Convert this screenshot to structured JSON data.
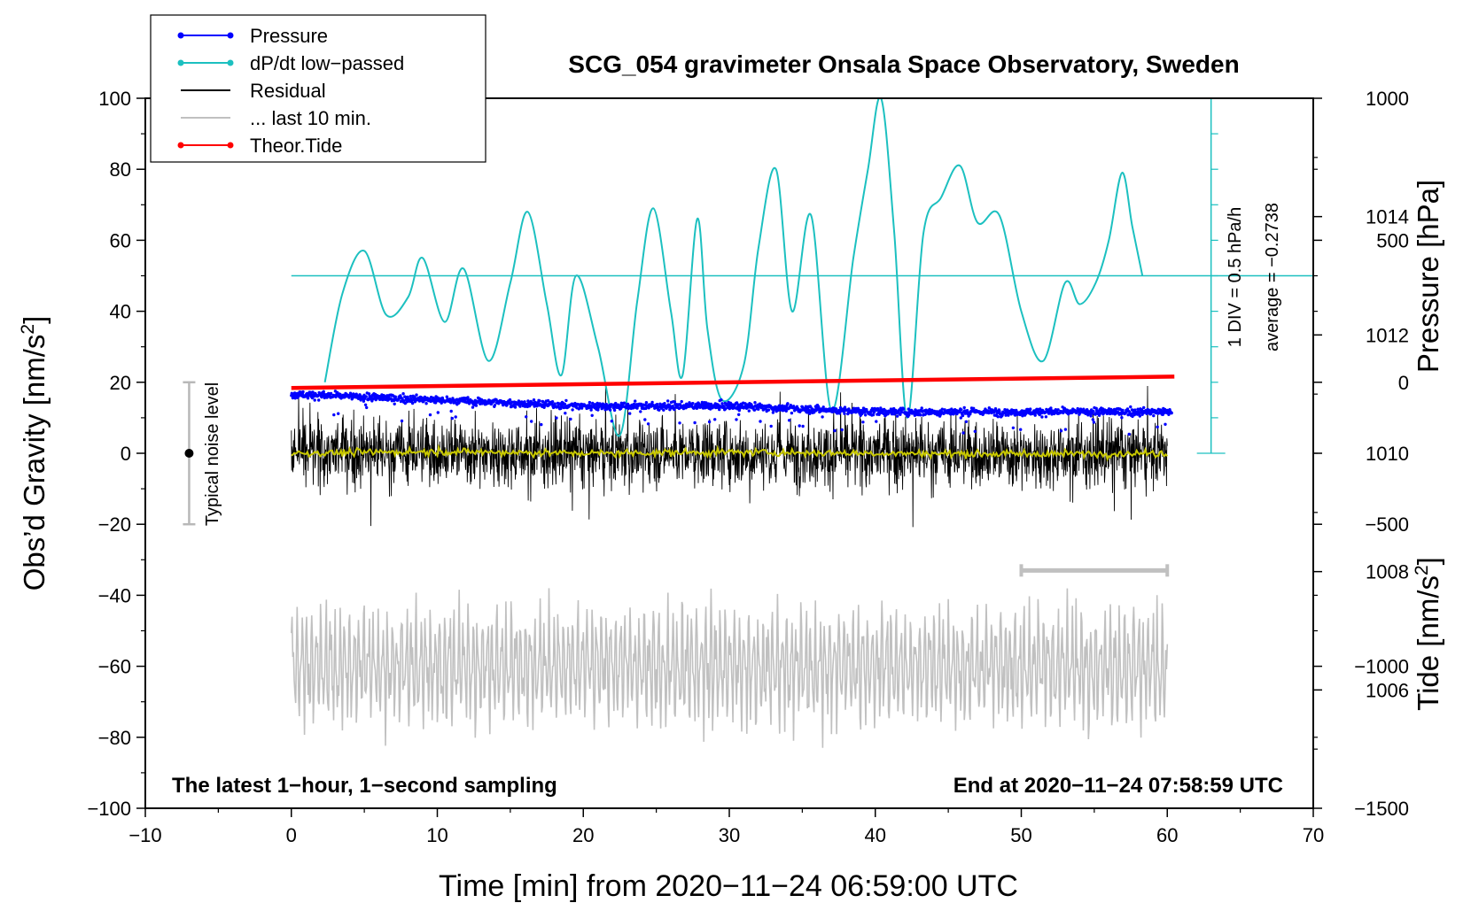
{
  "chart_data": {
    "type": "line",
    "title": "SCG_054 gravimeter Onsala Space Observatory, Sweden",
    "xlabel": "Time [min] from 2020−11−24 06:59:00 UTC",
    "ylabel_left": "Obs’d Gravity [nm/s",
    "ylabel_left_sup": "2",
    "ylabel_left_close": "]",
    "ylabel_right_pressure": "Pressure [hPa]",
    "ylabel_right_tide": "Tide [nm/s",
    "ylabel_right_tide_sup": "2",
    "ylabel_right_tide_close": "]",
    "xlim": [
      -10,
      70
    ],
    "ylim": [
      -100,
      100
    ],
    "pressure_lim": [
      1004,
      1016
    ],
    "tide_lim": [
      -1500,
      1000
    ],
    "x_ticks": [
      "−10",
      "0",
      "10",
      "20",
      "30",
      "40",
      "50",
      "60",
      "70"
    ],
    "y_ticks": [
      "−100",
      "−80",
      "−60",
      "−40",
      "−20",
      "0",
      "20",
      "40",
      "60",
      "80",
      "100"
    ],
    "pressure_ticks": [
      "1006",
      "1008",
      "1010",
      "1012",
      "1014"
    ],
    "tide_ticks": [
      "−1500",
      "−1000",
      "−500",
      "0",
      "500",
      "1000"
    ],
    "legend": [
      {
        "label": "Pressure",
        "color": "#0000ff",
        "marker": true
      },
      {
        "label": "dP/dt low−passed",
        "color": "#1cc0c0",
        "marker": true
      },
      {
        "label": "Residual",
        "color": "#000000",
        "marker": false
      },
      {
        "label": "... last 10 min.",
        "color": "#c0c0c0",
        "marker": false
      },
      {
        "label": "Theor.Tide",
        "color": "#ff0000",
        "marker": true
      }
    ],
    "annotations": {
      "bottom_left": "The latest 1−hour, 1−second sampling",
      "bottom_right": "End at 2020−11−24 07:58:59 UTC",
      "noise_label": "Typical noise level",
      "scale_label": "1 DIV = 0.5 hPa/h",
      "average_label": "average = −0.2738"
    },
    "noise_bar": {
      "x": -7,
      "y_low": -20,
      "y_high": 20
    },
    "last_10_min_bar": {
      "x_start": 50,
      "x_end": 60,
      "y": -33
    },
    "dpdt_scale": {
      "x": 63,
      "y_min": 0,
      "y_max": 100,
      "divisions": 10,
      "baseline_y": 50
    },
    "series": [
      {
        "name": "Pressure",
        "color": "#0000ff",
        "unit": "hPa",
        "x": [
          0,
          10,
          20,
          30,
          40,
          50,
          60
        ],
        "values": [
          1011.0,
          1010.9,
          1010.8,
          1010.8,
          1010.7,
          1010.7,
          1010.7
        ]
      },
      {
        "name": "dP/dt low-passed",
        "color": "#1cc0c0",
        "unit": "nm/s2 axis",
        "x": [
          2.3,
          3.5,
          5,
          6.5,
          8,
          9,
          10.5,
          11.8,
          13.5,
          15,
          16.2,
          17.5,
          18.5,
          19.5,
          21,
          22.5,
          23.7,
          24.8,
          26,
          26.8,
          27.8,
          28.5,
          29.5,
          31,
          32,
          33.2,
          34.3,
          35.6,
          37,
          38.5,
          39.5,
          40.4,
          41.3,
          42.2,
          43.3,
          44.5,
          45.8,
          47,
          48.5,
          50,
          51.5,
          53,
          54,
          55.1,
          56,
          56.9,
          57.6,
          58.3
        ],
        "values": [
          20,
          45,
          57,
          39,
          44,
          55,
          37,
          52,
          26,
          48,
          68,
          42,
          22,
          50,
          30,
          5,
          43,
          69,
          40,
          22,
          66,
          35,
          15,
          25,
          58,
          80,
          40,
          67,
          12,
          55,
          80,
          100,
          62,
          10,
          62,
          72,
          81,
          65,
          67,
          40,
          26,
          48,
          42,
          48,
          60,
          79,
          64,
          50
        ]
      },
      {
        "name": "Residual",
        "color": "#000000",
        "unit": "nm/s2",
        "x": [
          0,
          10,
          20,
          30,
          40,
          50,
          60
        ],
        "values": [
          0,
          0.5,
          0,
          0.3,
          0,
          -0.2,
          0
        ],
        "peak_to_peak": [
          -27,
          24
        ]
      },
      {
        "name": "Theor.Tide",
        "color": "#ff0000",
        "unit": "nm/s2",
        "x": [
          0,
          60
        ],
        "values": [
          -20,
          20
        ]
      }
    ]
  }
}
